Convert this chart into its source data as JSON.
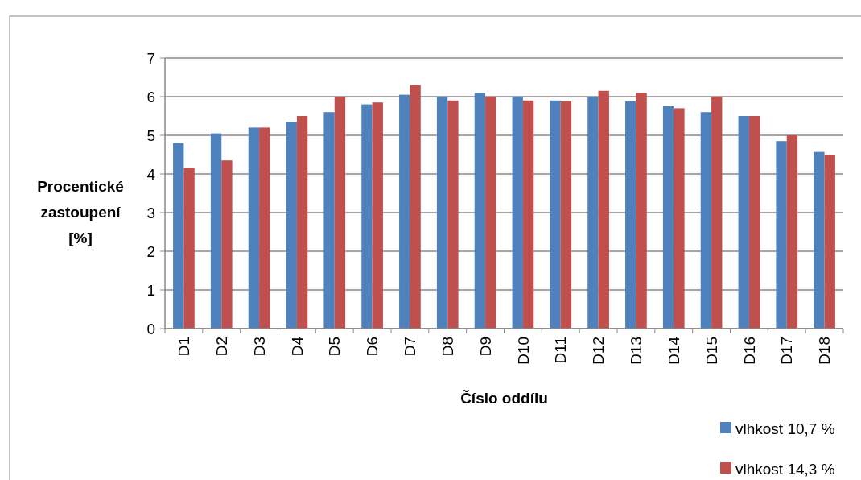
{
  "chart_data": {
    "type": "bar",
    "xlabel": "Číslo oddílu",
    "ylabel": "Procentické zastoupení [%]",
    "categories": [
      "D1",
      "D2",
      "D3",
      "D4",
      "D5",
      "D6",
      "D7",
      "D8",
      "D9",
      "D10",
      "D11",
      "D12",
      "D13",
      "D14",
      "D15",
      "D16",
      "D17",
      "D18"
    ],
    "series": [
      {
        "name": "vlhkost 10,7 %",
        "color": "#4f81bd",
        "values": [
          4.8,
          5.05,
          5.2,
          5.35,
          5.6,
          5.8,
          6.05,
          6.0,
          6.1,
          6.0,
          5.9,
          6.0,
          5.88,
          5.75,
          5.6,
          5.5,
          4.85,
          4.57
        ]
      },
      {
        "name": "vlhkost 14,3 %",
        "color": "#c0504d",
        "values": [
          4.16,
          4.35,
          5.2,
          5.5,
          6.0,
          5.85,
          6.3,
          5.9,
          6.0,
          5.9,
          5.88,
          6.15,
          6.1,
          5.7,
          6.0,
          5.5,
          5.0,
          4.5
        ]
      }
    ],
    "ylim": [
      0,
      7
    ],
    "yticks": [
      0,
      1,
      2,
      3,
      4,
      5,
      6,
      7
    ],
    "grid": "y",
    "legend": "bottom right"
  }
}
